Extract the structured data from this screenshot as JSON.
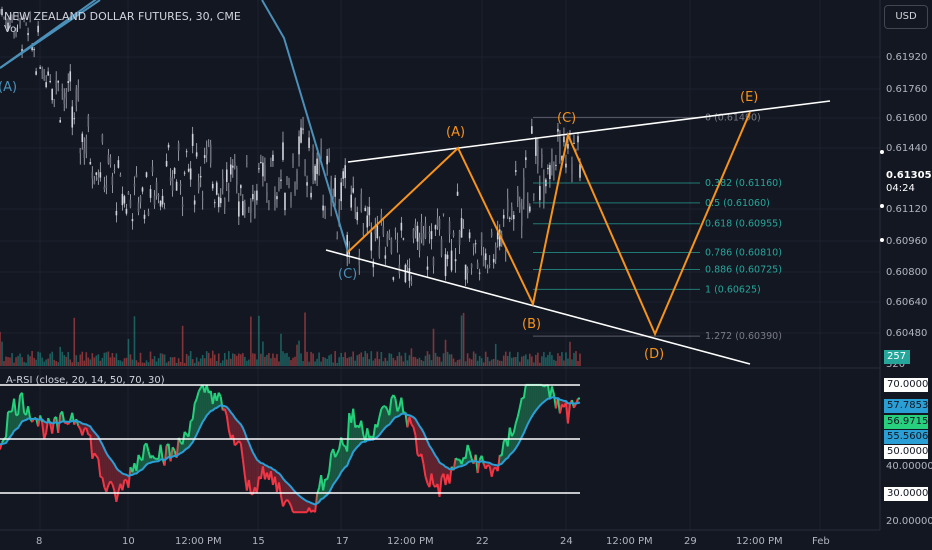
{
  "header": {
    "symbol_line": "NEW ZEALAND DOLLAR FUTURES, 30, CME",
    "vol_label": "Vol"
  },
  "toolbar": {
    "currency_button": "USD"
  },
  "price_axis": {
    "labels": [
      "0.61920",
      "0.61760",
      "0.61600",
      "0.61440",
      "0.61120",
      "0.60960",
      "0.60800",
      "0.60640",
      "0.60480",
      "320"
    ],
    "current_price": "0.61305",
    "countdown": "04:24",
    "volume_tag": "257"
  },
  "time_axis": {
    "labels": [
      "8",
      "10",
      "12:00 PM",
      "15",
      "17",
      "12:00 PM",
      "22",
      "24",
      "12:00 PM",
      "29",
      "12:00 PM",
      "Feb"
    ]
  },
  "fib_levels": [
    {
      "label": "0 (0.61490)"
    },
    {
      "label": "0.382 (0.61160)"
    },
    {
      "label": "0.5 (0.61060)"
    },
    {
      "label": "0.618 (0.60955)"
    },
    {
      "label": "0.786 (0.60810)"
    },
    {
      "label": "0.886 (0.60725)"
    },
    {
      "label": "1 (0.60625)"
    },
    {
      "label": "1.272 (0.60390)"
    }
  ],
  "wave_labels": {
    "blue_a": "(A)",
    "blue_c": "(C)",
    "orange_a": "(A)",
    "orange_b": "(B)",
    "orange_c": "(C)",
    "orange_d": "(D)",
    "orange_e": "(E)"
  },
  "rsi": {
    "title": "A-RSI (close, 20, 14, 50, 70, 30)",
    "axis_labels": [
      "40.00000",
      "20.00000"
    ],
    "tags": {
      "overbought": "70.00000",
      "value_a": "57.78533",
      "value_b": "56.97152",
      "value_c": "55.56066",
      "mid": "50.00000",
      "oversold": "30.00000"
    }
  },
  "colors": {
    "background": "#131722",
    "candle_up": "#b2b5be",
    "wave_orange": "#f7931a",
    "wave_blue": "#4a90b8",
    "rsi_green": "#26d07c",
    "rsi_red": "#f23645",
    "rsi_signal": "#2a9fd6"
  },
  "chart_data": {
    "type": "line",
    "y_range": [
      0.6032,
      0.6208
    ],
    "price_path": [
      [
        0.6198,
        0.6208
      ],
      [
        0.618,
        0.62
      ],
      [
        0.616,
        0.6185
      ],
      [
        0.613,
        0.6165
      ],
      [
        0.611,
        0.614
      ],
      [
        0.6095,
        0.612
      ],
      [
        0.61,
        0.6125
      ],
      [
        0.6105,
        0.6135
      ],
      [
        0.611,
        0.614
      ],
      [
        0.61,
        0.613
      ],
      [
        0.6098,
        0.6128
      ],
      [
        0.6102,
        0.6132
      ],
      [
        0.6108,
        0.6145
      ],
      [
        0.6095,
        0.613
      ],
      [
        0.608,
        0.6115
      ],
      [
        0.607,
        0.61
      ],
      [
        0.6065,
        0.6095
      ],
      [
        0.607,
        0.61
      ],
      [
        0.6075,
        0.611
      ],
      [
        0.6063,
        0.609
      ],
      [
        0.608,
        0.611
      ],
      [
        0.61,
        0.614
      ],
      [
        0.612,
        0.615
      ],
      [
        0.6115,
        0.6145
      ]
    ],
    "fib_values": [
      0.6149,
      0.6116,
      0.6106,
      0.60955,
      0.6081,
      0.60725,
      0.60625,
      0.6039
    ],
    "rsi_range": [
      18,
      76
    ]
  }
}
